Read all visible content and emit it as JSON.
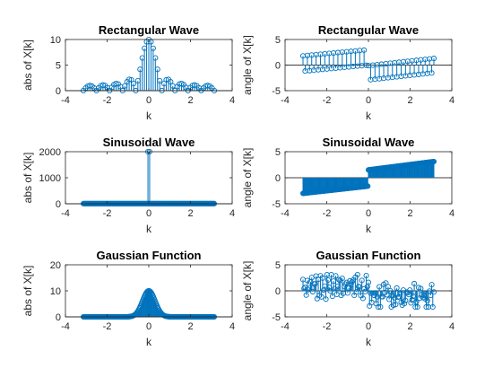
{
  "colors": {
    "stem": "#0072BD",
    "axis": "#262626"
  },
  "chart_data": [
    {
      "type": "stem",
      "title": "Rectangular Wave",
      "xlabel": "k",
      "ylabel": "abs of X[k]",
      "xlim": [
        -4,
        4
      ],
      "ylim": [
        0,
        10
      ],
      "xticks": [
        "-4",
        "-2",
        "0",
        "2",
        "4"
      ],
      "yticks": [
        "0",
        "5",
        "10"
      ],
      "signal": "rect",
      "n_points": 61,
      "k_range": [
        -3.14,
        3.14
      ]
    },
    {
      "type": "stem",
      "title": "Rectangular Wave",
      "xlabel": "k",
      "ylabel": "angle of X[k]",
      "xlim": [
        -4,
        4
      ],
      "ylim": [
        -5,
        5
      ],
      "xticks": [
        "-4",
        "-2",
        "0",
        "2",
        "4"
      ],
      "yticks": [
        "-5",
        "0",
        "5"
      ],
      "signal": "rect_phase",
      "n_points": 61,
      "k_range": [
        -3.14,
        3.14
      ]
    },
    {
      "type": "stem",
      "title": "Sinusoidal Wave",
      "xlabel": "k",
      "ylabel": "abs of X[k]",
      "xlim": [
        -4,
        4
      ],
      "ylim": [
        0,
        2000
      ],
      "xticks": [
        "-4",
        "-2",
        "0",
        "2",
        "4"
      ],
      "yticks": [
        "0",
        "1000",
        "2000"
      ],
      "signal": "sin",
      "n_points": 201,
      "k_range": [
        -3.14,
        3.14
      ],
      "peaks": [
        [
          -0.04,
          2000
        ],
        [
          0.04,
          2000
        ]
      ]
    },
    {
      "type": "stem",
      "title": "Sinusoidal Wave",
      "xlabel": "k",
      "ylabel": "angle of X[k]",
      "xlim": [
        -4,
        4
      ],
      "ylim": [
        -5,
        5
      ],
      "xticks": [
        "-4",
        "-2",
        "0",
        "2",
        "4"
      ],
      "yticks": [
        "-5",
        "0",
        "5"
      ],
      "signal": "sin_phase",
      "n_points": 201,
      "k_range": [
        -3.14,
        3.14
      ]
    },
    {
      "type": "stem",
      "title": "Gaussian Function",
      "xlabel": "k",
      "ylabel": "abs of X[k]",
      "xlim": [
        -4,
        4
      ],
      "ylim": [
        0,
        20
      ],
      "xticks": [
        "-4",
        "-2",
        "0",
        "2",
        "4"
      ],
      "yticks": [
        "0",
        "10",
        "20"
      ],
      "signal": "gauss",
      "n_points": 201,
      "k_range": [
        -3.14,
        3.14
      ],
      "peak_value": 10
    },
    {
      "type": "stem",
      "title": "Gaussian Function",
      "xlabel": "k",
      "ylabel": "angle of X[k]",
      "xlim": [
        -4,
        4
      ],
      "ylim": [
        -5,
        5
      ],
      "xticks": [
        "-4",
        "-2",
        "0",
        "2",
        "4"
      ],
      "yticks": [
        "-5",
        "0",
        "5"
      ],
      "signal": "gauss_phase",
      "n_points": 121,
      "k_range": [
        -3.14,
        3.14
      ]
    }
  ]
}
